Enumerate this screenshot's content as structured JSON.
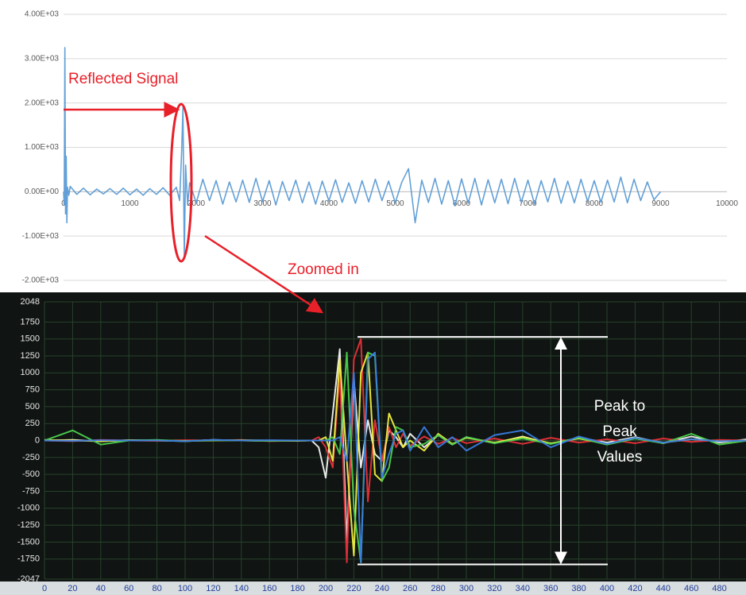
{
  "chart_data": [
    {
      "type": "line",
      "annotations": [
        "Reflected Signal",
        "Zoomed in"
      ],
      "xlim": [
        0,
        10000
      ],
      "xticks": [
        0,
        1000,
        2000,
        3000,
        4000,
        5000,
        6000,
        7000,
        8000,
        9000,
        10000
      ],
      "ylim": [
        -2000,
        4000
      ],
      "yticks": [
        {
          "value": -2000,
          "label": "-2.00E+03"
        },
        {
          "value": -1000,
          "label": "-1.00E+03"
        },
        {
          "value": 0,
          "label": "0.00E+00"
        },
        {
          "value": 1000,
          "label": "1.00E+03"
        },
        {
          "value": 2000,
          "label": "2.00E+03"
        },
        {
          "value": 3000,
          "label": "3.00E+03"
        },
        {
          "value": 4000,
          "label": "4.00E+03"
        }
      ],
      "grid": true,
      "x": [
        0,
        10,
        20,
        30,
        40,
        50,
        60,
        80,
        100,
        200,
        300,
        400,
        500,
        600,
        700,
        800,
        900,
        1000,
        1100,
        1200,
        1300,
        1400,
        1500,
        1600,
        1700,
        1750,
        1780,
        1800,
        1820,
        1840,
        1870,
        1900,
        2000,
        2100,
        2200,
        2300,
        2400,
        2500,
        2600,
        2700,
        2800,
        2900,
        3000,
        3100,
        3200,
        3300,
        3400,
        3500,
        3600,
        3700,
        3800,
        3900,
        4000,
        4100,
        4200,
        4300,
        4400,
        4500,
        4600,
        4700,
        4800,
        4900,
        5000,
        5100,
        5200,
        5300,
        5400,
        5500,
        5600,
        5700,
        5800,
        5900,
        6000,
        6100,
        6200,
        6300,
        6400,
        6500,
        6600,
        6700,
        6800,
        6900,
        7000,
        7100,
        7200,
        7300,
        7400,
        7500,
        7600,
        7700,
        7800,
        7900,
        8000,
        8100,
        8200,
        8300,
        8400,
        8500,
        8600,
        8700,
        8800,
        8900,
        9000
      ],
      "series": [
        {
          "color": "#5b9bd5",
          "values": [
            0,
            -300,
            3250,
            -500,
            800,
            -700,
            100,
            -80,
            120,
            -60,
            80,
            -70,
            60,
            -50,
            70,
            -60,
            80,
            -70,
            60,
            -80,
            70,
            -60,
            90,
            -80,
            100,
            -200,
            900,
            1900,
            -1500,
            600,
            -300,
            200,
            -250,
            280,
            -200,
            250,
            -280,
            220,
            -230,
            260,
            -240,
            300,
            -220,
            250,
            -300,
            230,
            -200,
            260,
            -250,
            220,
            -280,
            240,
            -210,
            270,
            -240,
            200,
            -260,
            250,
            -230,
            280,
            -200,
            240,
            -250,
            220,
            520,
            -700,
            260,
            -240,
            300,
            -280,
            250,
            -320,
            290,
            -260,
            300,
            -300,
            270,
            -250,
            280,
            -270,
            300,
            -240,
            260,
            -280,
            250,
            -230,
            300,
            -260,
            240,
            -250,
            280,
            -220,
            250,
            -240,
            260,
            -230,
            330,
            -250,
            280,
            -200,
            220,
            -180,
            0
          ]
        }
      ]
    },
    {
      "type": "line",
      "annotations": [
        "Peak to",
        "Peak",
        "Values"
      ],
      "reference_lines": [
        1530,
        -1830
      ],
      "xlim": [
        0,
        500
      ],
      "xticks": [
        0,
        20,
        40,
        60,
        80,
        100,
        120,
        140,
        160,
        180,
        200,
        220,
        240,
        260,
        280,
        300,
        320,
        340,
        360,
        380,
        400,
        420,
        440,
        460,
        480
      ],
      "ylim": [
        -2047,
        2048
      ],
      "yticks": [
        2048,
        1750,
        1500,
        1250,
        1000,
        750,
        500,
        250,
        0,
        -250,
        -500,
        -750,
        -1000,
        -1250,
        -1500,
        -1750,
        -2047
      ],
      "grid": true,
      "x": [
        0,
        20,
        40,
        60,
        80,
        100,
        120,
        140,
        160,
        180,
        190,
        195,
        200,
        205,
        210,
        215,
        220,
        225,
        230,
        235,
        240,
        245,
        250,
        255,
        260,
        270,
        280,
        290,
        300,
        320,
        340,
        360,
        380,
        400,
        420,
        440,
        460,
        480,
        500
      ],
      "series": [
        {
          "color": "#f2f2f2",
          "values": [
            0,
            10,
            -10,
            5,
            0,
            -10,
            10,
            0,
            -5,
            0,
            0,
            -100,
            -550,
            400,
            1350,
            -1500,
            900,
            -400,
            300,
            -200,
            -300,
            150,
            50,
            -100,
            100,
            -100,
            80,
            -60,
            50,
            -40,
            60,
            -50,
            40,
            -30,
            50,
            -40,
            60,
            -30,
            20
          ]
        },
        {
          "color": "#e8303a",
          "values": [
            0,
            -10,
            10,
            0,
            -5,
            5,
            0,
            10,
            -10,
            0,
            0,
            50,
            -100,
            -400,
            1000,
            -1800,
            1200,
            1500,
            -900,
            300,
            -300,
            200,
            -100,
            100,
            -80,
            60,
            -50,
            40,
            -40,
            30,
            -50,
            40,
            -30,
            20,
            -40,
            30,
            -20,
            10,
            0
          ]
        },
        {
          "color": "#f0f040",
          "values": [
            10,
            0,
            -10,
            5,
            0,
            -5,
            0,
            5,
            0,
            -5,
            0,
            0,
            50,
            -300,
            1200,
            -300,
            -1700,
            1000,
            1300,
            -500,
            -600,
            400,
            150,
            -100,
            0,
            -150,
            100,
            -50,
            40,
            -30,
            50,
            -40,
            30,
            -50,
            40,
            -30,
            20,
            -10,
            0
          ]
        },
        {
          "color": "#4cd04c",
          "values": [
            0,
            150,
            -60,
            0,
            10,
            -10,
            5,
            0,
            -5,
            0,
            0,
            0,
            0,
            50,
            -200,
            1300,
            -1000,
            -1800,
            1300,
            1250,
            -600,
            -400,
            200,
            150,
            -100,
            -50,
            80,
            -60,
            50,
            -40,
            30,
            -50,
            40,
            -60,
            30,
            -40,
            100,
            -60,
            0
          ]
        },
        {
          "color": "#3a7be0",
          "values": [
            0,
            -5,
            5,
            0,
            0,
            -10,
            10,
            0,
            5,
            0,
            0,
            0,
            0,
            0,
            50,
            -300,
            1000,
            -1800,
            1200,
            1300,
            -550,
            -200,
            100,
            150,
            -150,
            200,
            -100,
            50,
            -150,
            80,
            150,
            -100,
            60,
            -50,
            40,
            -30,
            20,
            -10,
            0
          ]
        }
      ]
    }
  ]
}
